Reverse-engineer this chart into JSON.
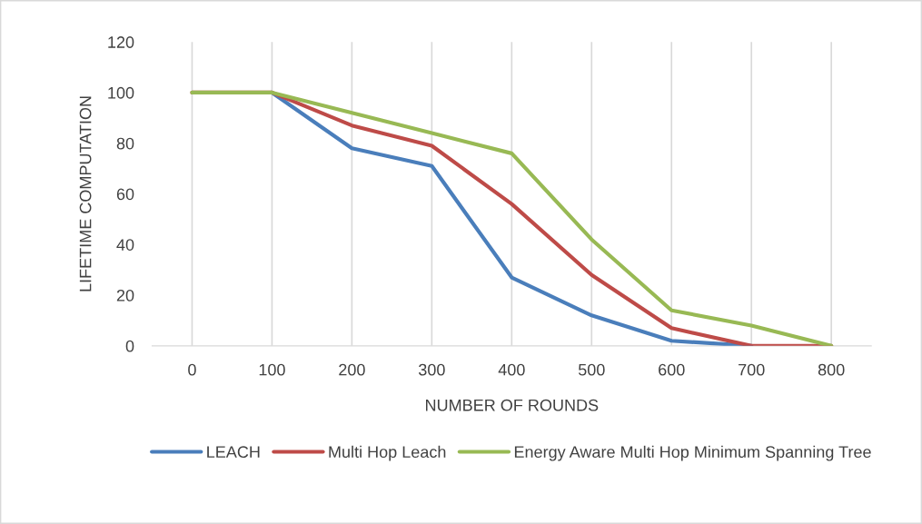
{
  "chart_data": {
    "type": "line",
    "xlabel": "NUMBER OF ROUNDS",
    "ylabel": "LIFETIME COMPUTATION",
    "categories": [
      "0",
      "100",
      "200",
      "300",
      "400",
      "500",
      "600",
      "700",
      "800"
    ],
    "series": [
      {
        "name": "LEACH",
        "color": "#4a7ebb",
        "values": [
          null,
          100,
          78,
          71,
          27,
          12,
          2,
          0,
          null
        ]
      },
      {
        "name": "Multi Hop Leach",
        "color": "#be4b48",
        "values": [
          100,
          100,
          87,
          79,
          56,
          28,
          7,
          0,
          0
        ]
      },
      {
        "name": "Energy Aware Multi Hop Minimum Spanning Tree",
        "color": "#98b954",
        "values": [
          100,
          100,
          92,
          84,
          76,
          42,
          14,
          8,
          0
        ]
      }
    ],
    "ylim": [
      0,
      120
    ],
    "yticks": [
      0,
      20,
      40,
      60,
      80,
      100,
      120
    ],
    "grid": "x",
    "legend": "bottom",
    "line_style": "solid",
    "marker": "none"
  }
}
